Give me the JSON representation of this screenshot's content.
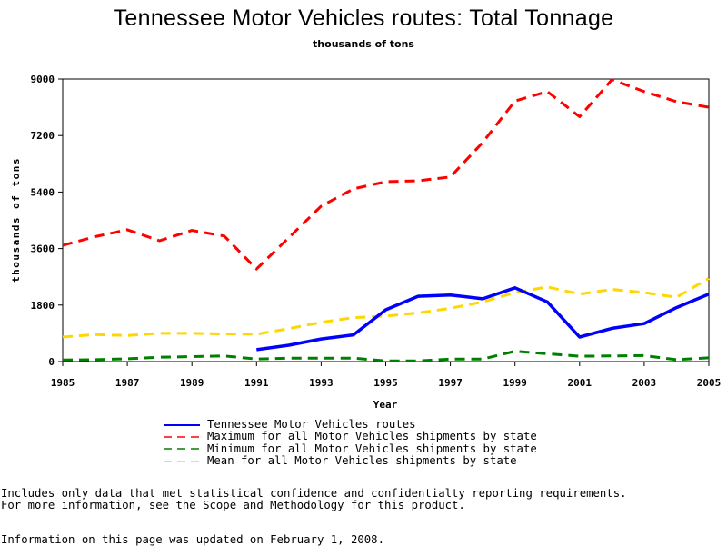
{
  "title": "Tennessee Motor Vehicles routes: Total Tonnage",
  "subtitle": "thousands of tons",
  "footnotes": {
    "line1": "Includes only data that met statistical confidence and confidentialty reporting requirements.",
    "line2": "For more information, see the Scope and Methodology for this product.",
    "updated": "Information on this page was updated on February 1, 2008."
  },
  "chart_data": {
    "type": "line",
    "xlabel": "Year",
    "ylabel": "thousands of tons",
    "xlim": [
      1985,
      2005
    ],
    "ylim": [
      0,
      9000
    ],
    "x_ticks": [
      "1985",
      "1987",
      "1989",
      "1991",
      "1993",
      "1995",
      "1997",
      "1999",
      "2001",
      "2003",
      "2005"
    ],
    "y_ticks": [
      "0",
      "1800",
      "3600",
      "5400",
      "7200",
      "9000"
    ],
    "grid": false,
    "legend_position": "bottom",
    "series": [
      {
        "name": "Tennessee Motor Vehicles routes",
        "color": "#0000ff",
        "dash": "solid",
        "x": [
          1991,
          1992,
          1993,
          1994,
          1995,
          1996,
          1997,
          1998,
          1999,
          2000,
          2001,
          2002,
          2003,
          2004,
          2005
        ],
        "y": [
          380,
          520,
          720,
          850,
          1650,
          2080,
          2120,
          2000,
          2350,
          1900,
          780,
          1060,
          1210,
          1720,
          2150
        ]
      },
      {
        "name": "Maximum for all Motor Vehicles shipments by state",
        "color": "#ff0000",
        "dash": "dashed",
        "x": [
          1985,
          1986,
          1987,
          1988,
          1989,
          1990,
          1991,
          1992,
          1993,
          1994,
          1995,
          1996,
          1997,
          1998,
          1999,
          2000,
          2001,
          2002,
          2003,
          2004,
          2005
        ],
        "y": [
          3700,
          3980,
          4200,
          3850,
          4180,
          4000,
          2950,
          3950,
          4950,
          5500,
          5730,
          5760,
          5880,
          6980,
          8300,
          8600,
          7800,
          8980,
          8600,
          8280,
          8100
        ]
      },
      {
        "name": "Minimum for all Motor Vehicles shipments by state",
        "color": "#008000",
        "dash": "dashed",
        "x": [
          1985,
          1986,
          1987,
          1988,
          1989,
          1990,
          1991,
          1992,
          1993,
          1994,
          1995,
          1996,
          1997,
          1998,
          1999,
          2000,
          2001,
          2002,
          2003,
          2004,
          2005
        ],
        "y": [
          50,
          60,
          90,
          140,
          160,
          180,
          80,
          110,
          110,
          110,
          20,
          20,
          80,
          80,
          330,
          250,
          170,
          180,
          190,
          60,
          120
        ]
      },
      {
        "name": "Mean for all Motor Vehicles shipments by state",
        "color": "#ffd700",
        "dash": "dashed",
        "x": [
          1985,
          1986,
          1987,
          1988,
          1989,
          1990,
          1991,
          1992,
          1993,
          1994,
          1995,
          1996,
          1997,
          1998,
          1999,
          2000,
          2001,
          2002,
          2003,
          2004,
          2005
        ],
        "y": [
          780,
          860,
          830,
          900,
          900,
          880,
          870,
          1050,
          1250,
          1400,
          1450,
          1550,
          1700,
          1900,
          2200,
          2380,
          2150,
          2300,
          2200,
          2050,
          2650
        ]
      }
    ]
  }
}
